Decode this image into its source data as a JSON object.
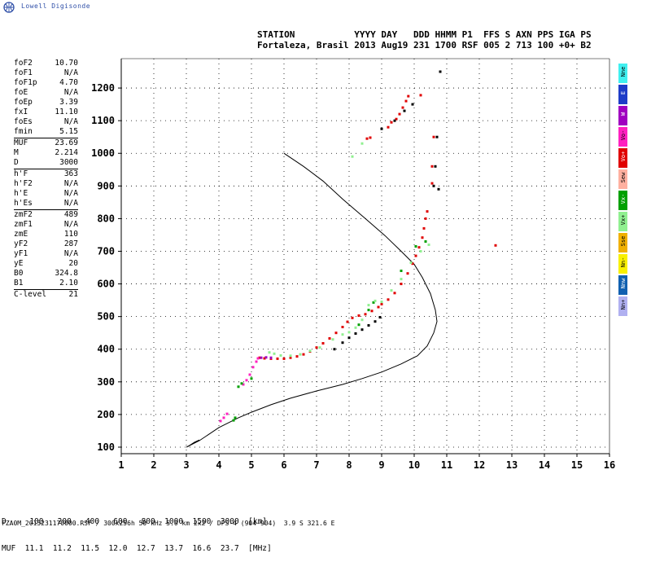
{
  "logo": {
    "text": "Lowell Digisonde"
  },
  "header": {
    "line1": "STATION           YYYY DAY   DDD HHMM P1  FFS S AXN PPS IGA PS",
    "line2": "Fortaleza, Brasil 2013 Aug19 231 1700 RSF 005 2 713 100 +0+ B2"
  },
  "parameters": [
    {
      "name": "foF2",
      "value": "10.70"
    },
    {
      "name": "foF1",
      "value": "N/A"
    },
    {
      "name": "foF1p",
      "value": "4.70"
    },
    {
      "name": "foE",
      "value": "N/A"
    },
    {
      "name": "foEp",
      "value": "3.39"
    },
    {
      "name": "fxI",
      "value": "11.10"
    },
    {
      "name": "foEs",
      "value": "N/A"
    },
    {
      "name": "fmin",
      "value": "5.15"
    },
    {
      "sep": true
    },
    {
      "name": "MUF",
      "value": "23.69"
    },
    {
      "name": "M",
      "value": "2.214"
    },
    {
      "name": "D",
      "value": "3000"
    },
    {
      "sep": true
    },
    {
      "name": "h'F",
      "value": "363"
    },
    {
      "name": "h'F2",
      "value": "N/A"
    },
    {
      "name": "h'E",
      "value": "N/A"
    },
    {
      "name": "h'Es",
      "value": "N/A"
    },
    {
      "sep": true
    },
    {
      "name": "zmF2",
      "value": "489"
    },
    {
      "name": "zmF1",
      "value": "N/A"
    },
    {
      "name": "zmE",
      "value": "110"
    },
    {
      "name": "yF2",
      "value": "287"
    },
    {
      "name": "yF1",
      "value": "N/A"
    },
    {
      "name": "yE",
      "value": "20"
    },
    {
      "name": "B0",
      "value": "324.8"
    },
    {
      "name": "B1",
      "value": "2.10"
    },
    {
      "sep": true
    },
    {
      "name": "C-level",
      "value": "21"
    }
  ],
  "legend": [
    {
      "label": "Nne",
      "color": "#40f0f0"
    },
    {
      "label": "E",
      "color": "#1e3cc8"
    },
    {
      "label": "W",
      "color": "#a000c0"
    },
    {
      "label": "Vo-",
      "color": "#ff20c0"
    },
    {
      "label": "Vo+",
      "color": "#e00000"
    },
    {
      "label": "Sew",
      "color": "#ffb0a0"
    },
    {
      "label": "Vx-",
      "color": "#00a000"
    },
    {
      "label": "Vx+",
      "color": "#90f090"
    },
    {
      "label": "Sse",
      "color": "#f0b000"
    },
    {
      "label": "Nn-",
      "color": "#f8f000"
    },
    {
      "label": "Nnw",
      "color": "#1060b0"
    },
    {
      "label": "Nn+",
      "color": "#b0b0f0"
    }
  ],
  "bottom": {
    "line1": "D     100   200   400   600   800  1000  1500  3000  [km]",
    "line2": "MUF  11.1  11.2  11.5  12.0  12.7  13.7  16.6  23.7  [MHz]"
  },
  "footer": {
    "text": "FZA0M_2013231170000.RSF / 300x256h 50 kHz 5.0 km 2x2 / DPS-4 (904-904)  3.9 S 321.6 E"
  },
  "chart_data": {
    "type": "scatter",
    "xlabel": "",
    "ylabel": "",
    "xlim": [
      1,
      16
    ],
    "ylim": [
      80,
      1290
    ],
    "xticks": [
      1,
      2,
      3,
      4,
      5,
      6,
      7,
      8,
      9,
      10,
      11,
      12,
      13,
      14,
      15,
      16
    ],
    "yticks": [
      100,
      200,
      300,
      400,
      500,
      600,
      700,
      800,
      900,
      1000,
      1100,
      1200
    ],
    "grid": "dotted",
    "series": [
      {
        "color": "#e00000",
        "points": [
          [
            5.25,
            374
          ],
          [
            5.4,
            372
          ],
          [
            5.6,
            371
          ],
          [
            5.8,
            371
          ],
          [
            6.0,
            371
          ],
          [
            6.2,
            374
          ],
          [
            6.4,
            378
          ],
          [
            6.6,
            384
          ],
          [
            6.8,
            393
          ],
          [
            7.0,
            405
          ],
          [
            7.2,
            418
          ],
          [
            7.4,
            433
          ],
          [
            7.6,
            450
          ],
          [
            7.8,
            468
          ],
          [
            7.95,
            484
          ],
          [
            8.1,
            496
          ],
          [
            8.3,
            503
          ],
          [
            8.5,
            507
          ],
          [
            8.7,
            517
          ],
          [
            8.9,
            529
          ],
          [
            9.0,
            538
          ],
          [
            9.2,
            552
          ],
          [
            9.4,
            572
          ],
          [
            9.6,
            600
          ],
          [
            9.8,
            632
          ],
          [
            9.95,
            662
          ],
          [
            10.05,
            686
          ],
          [
            10.15,
            712
          ],
          [
            10.25,
            742
          ],
          [
            10.3,
            770
          ],
          [
            10.35,
            800
          ],
          [
            10.4,
            822
          ]
        ]
      },
      {
        "color": "#e00000",
        "points": [
          [
            8.55,
            1045
          ],
          [
            8.65,
            1048
          ],
          [
            9.2,
            1080
          ],
          [
            9.3,
            1095
          ],
          [
            9.45,
            1105
          ],
          [
            9.55,
            1120
          ],
          [
            9.65,
            1140
          ],
          [
            9.75,
            1160
          ],
          [
            9.82,
            1175
          ],
          [
            10.2,
            1178
          ],
          [
            10.6,
            1050
          ],
          [
            10.55,
            960
          ],
          [
            10.55,
            908
          ],
          [
            12.5,
            718
          ]
        ]
      },
      {
        "color": "#ff20c0",
        "points": [
          [
            4.75,
            292
          ],
          [
            4.85,
            305
          ],
          [
            4.95,
            322
          ],
          [
            5.05,
            345
          ],
          [
            5.15,
            362
          ],
          [
            5.2,
            372
          ],
          [
            4.05,
            180
          ],
          [
            4.15,
            190
          ],
          [
            4.25,
            202
          ]
        ]
      },
      {
        "color": "#a000c0",
        "points": [
          [
            5.3,
            374
          ],
          [
            5.45,
            375
          ],
          [
            5.6,
            374
          ]
        ]
      },
      {
        "color": "#00a000",
        "points": [
          [
            4.6,
            285
          ],
          [
            4.7,
            295
          ],
          [
            5.0,
            310
          ],
          [
            4.5,
            190
          ],
          [
            4.45,
            182
          ],
          [
            8.3,
            475
          ],
          [
            8.6,
            520
          ],
          [
            8.75,
            543
          ],
          [
            9.6,
            640
          ],
          [
            10.05,
            715
          ],
          [
            10.35,
            730
          ]
        ]
      },
      {
        "color": "#90f090",
        "points": [
          [
            5.55,
            390
          ],
          [
            5.7,
            386
          ],
          [
            5.9,
            381
          ],
          [
            6.2,
            380
          ],
          [
            6.5,
            384
          ],
          [
            6.8,
            395
          ],
          [
            7.1,
            405
          ],
          [
            7.5,
            430
          ],
          [
            7.8,
            445
          ],
          [
            8.0,
            452
          ],
          [
            8.2,
            466
          ],
          [
            8.4,
            490
          ],
          [
            8.6,
            535
          ],
          [
            8.8,
            548
          ],
          [
            9.0,
            545
          ],
          [
            9.3,
            580
          ],
          [
            9.6,
            615
          ],
          [
            9.9,
            665
          ],
          [
            10.2,
            700
          ],
          [
            10.45,
            720
          ],
          [
            8.1,
            990
          ],
          [
            8.4,
            1030
          ]
        ]
      },
      {
        "color": "#000000",
        "points": [
          [
            7.55,
            400
          ],
          [
            7.8,
            420
          ],
          [
            8.0,
            435
          ],
          [
            8.2,
            448
          ],
          [
            8.4,
            460
          ],
          [
            8.6,
            473
          ],
          [
            8.8,
            485
          ],
          [
            8.95,
            498
          ],
          [
            9.0,
            1075
          ],
          [
            9.4,
            1100
          ],
          [
            9.7,
            1130
          ],
          [
            9.95,
            1150
          ],
          [
            10.7,
            1050
          ],
          [
            10.65,
            960
          ],
          [
            10.6,
            900
          ],
          [
            10.75,
            890
          ],
          [
            10.8,
            1250
          ]
        ]
      }
    ],
    "profile": [
      [
        3.0,
        100
      ],
      [
        3.4,
        120
      ],
      [
        4.0,
        160
      ],
      [
        4.6,
        190
      ],
      [
        5.0,
        207
      ],
      [
        5.6,
        230
      ],
      [
        6.2,
        250
      ],
      [
        7.0,
        272
      ],
      [
        7.8,
        292
      ],
      [
        8.4,
        310
      ],
      [
        9.0,
        330
      ],
      [
        9.6,
        355
      ],
      [
        10.1,
        380
      ],
      [
        10.4,
        410
      ],
      [
        10.6,
        450
      ],
      [
        10.7,
        485
      ],
      [
        10.65,
        520
      ],
      [
        10.5,
        570
      ],
      [
        10.25,
        620
      ],
      [
        10.0,
        660
      ],
      [
        9.6,
        700
      ],
      [
        9.1,
        748
      ],
      [
        8.5,
        800
      ],
      [
        7.8,
        860
      ],
      [
        7.2,
        915
      ],
      [
        6.6,
        960
      ],
      [
        6.0,
        1000
      ]
    ],
    "tail": [
      [
        3.05,
        102
      ],
      [
        3.25,
        115
      ],
      [
        3.4,
        122
      ]
    ]
  }
}
